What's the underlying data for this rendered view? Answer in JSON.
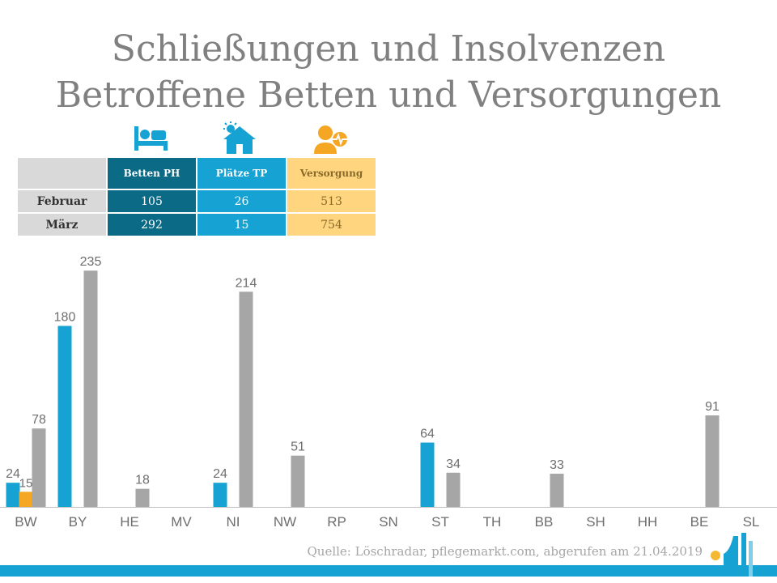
{
  "header": {
    "title_line1": "Schließungen und Insolvenzen",
    "title_line2": "Betroffene Betten und Versorgungen"
  },
  "legend_icons": [
    "bed-icon",
    "house-sun-icon",
    "person-heartbeat-icon"
  ],
  "table": {
    "columns": [
      "",
      "Betten PH",
      "Plätze TP",
      "Versorgung"
    ],
    "rows": [
      {
        "label": "Februar",
        "betten": "105",
        "plaetze": "26",
        "versorgung": "513"
      },
      {
        "label": "März",
        "betten": "292",
        "plaetze": "15",
        "versorgung": "754"
      }
    ]
  },
  "chart_data": {
    "type": "bar",
    "categories": [
      "BW",
      "BY",
      "HE",
      "MV",
      "NI",
      "NW",
      "RP",
      "SN",
      "ST",
      "TH",
      "BB",
      "SH",
      "HH",
      "BE",
      "SL"
    ],
    "series": [
      {
        "color": "#16a3d4",
        "values": [
          24,
          180,
          null,
          null,
          24,
          null,
          null,
          null,
          64,
          null,
          null,
          null,
          null,
          null,
          null
        ]
      },
      {
        "color": "#f5a623",
        "values": [
          15,
          null,
          null,
          null,
          null,
          null,
          null,
          null,
          null,
          null,
          null,
          null,
          null,
          null,
          null
        ]
      },
      {
        "color": "#a6a6a6",
        "values": [
          78,
          235,
          18,
          null,
          214,
          51,
          null,
          null,
          34,
          null,
          33,
          null,
          null,
          91,
          null
        ]
      }
    ],
    "ylim": [
      0,
      240
    ],
    "colors": {
      "blue": "#16a3d4",
      "orange": "#f5a623",
      "gray": "#a6a6a6",
      "dark_teal": "#0b6a86",
      "light_orange": "#ffd67f"
    }
  },
  "footer": {
    "source": "Quelle: Löschradar, pflegemarkt.com, abgerufen am 21.04.2019"
  }
}
